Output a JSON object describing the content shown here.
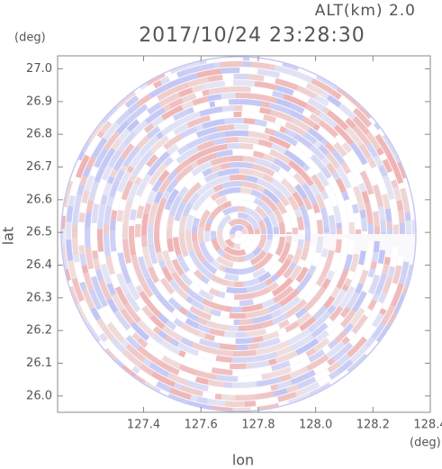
{
  "chart_data": {
    "type": "ppi",
    "title": "2017/10/24 23:28:30",
    "subtitle": "ALT(km) 2.0",
    "xlabel": "lon",
    "ylabel": "lat",
    "xunit": "(deg)",
    "yunit": "(deg)",
    "xlim": [
      127.1,
      128.4
    ],
    "ylim": [
      25.95,
      27.04
    ],
    "xticks": [
      127.4,
      127.6,
      127.8,
      {
        "value": 128.0,
        "label": "128.0"
      },
      128.2,
      128.4
    ],
    "yticks": [
      {
        "value": 26.0,
        "label": "26.0"
      },
      26.1,
      26.2,
      26.3,
      26.4,
      26.5,
      26.6,
      26.7,
      26.8,
      26.9,
      {
        "value": 27.0,
        "label": "27.0"
      }
    ]
  }
}
